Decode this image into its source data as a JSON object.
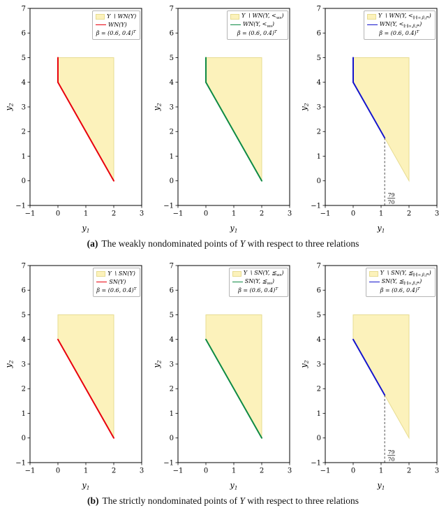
{
  "captions": {
    "a_tag": "(a)",
    "a_pre": "The weakly nondominated points of ",
    "a_math": "Y",
    "a_post": " with respect to three relations",
    "b_tag": "(b)",
    "b_pre": "The strictly nondominated points of ",
    "b_math": "Y",
    "b_post": " with respect to three relations"
  },
  "colors": {
    "region_fill": "#fcf2bb",
    "region_edge": "#e7dc92",
    "red": "#e8000d",
    "green": "#0e8a44",
    "blue": "#1414cc",
    "frame": "#000000",
    "threshold_line": "#3a3a3a"
  },
  "chart_data": {
    "type": "line",
    "description": "Six subplots: shaded feasible set Y with highlighted (weakly/strictly) nondominated boundary segments under three order relations",
    "axes": {
      "xlim": [
        -1,
        3
      ],
      "ylim": [
        -1,
        7
      ],
      "xticks": [
        -1,
        0,
        1,
        2,
        3
      ],
      "yticks": [
        -1,
        0,
        1,
        2,
        3,
        4,
        5,
        6,
        7
      ],
      "xlabel_main": "y",
      "xlabel_sub": "1",
      "ylabel_main": "y",
      "ylabel_sub": "2",
      "grid": false
    },
    "region_polygon": [
      [
        0,
        5
      ],
      [
        2,
        5
      ],
      [
        2,
        0
      ],
      [
        0,
        4
      ]
    ],
    "threshold": {
      "x": 1.1285714,
      "line_top_y": 1.7428571,
      "line_bottom_y": -1,
      "label_num": "79",
      "label_den": "70"
    },
    "beta_value": "(0.6, 0.4)",
    "subplots": [
      {
        "id": "a-natural-order",
        "line_color": "red",
        "highlight_segments": [
          [
            [
              0,
              5
            ],
            [
              0,
              4
            ]
          ],
          [
            [
              0,
              4
            ],
            [
              2,
              0
            ]
          ]
        ],
        "show_threshold": false,
        "legend": [
          {
            "marker": "patch",
            "segs": [
              {
                "t": "Y ∖ WN(Y)"
              }
            ]
          },
          {
            "marker": "line",
            "segs": [
              {
                "t": "WN(Y)"
              }
            ]
          },
          {
            "marker": "none",
            "segs": [
              {
                "t": "β = (0.6, 0.4)"
              },
              {
                "t": "T",
                "sup": 1
              }
            ]
          }
        ]
      },
      {
        "id": "a-weighted-sum-order",
        "line_color": "green",
        "highlight_segments": [
          [
            [
              0,
              5
            ],
            [
              0,
              4
            ]
          ],
          [
            [
              0,
              4
            ],
            [
              2,
              0
            ]
          ]
        ],
        "show_threshold": false,
        "legend": [
          {
            "marker": "patch",
            "segs": [
              {
                "t": "Y ∖ WN(Y, <"
              },
              {
                "t": "ws",
                "sub": 1
              },
              {
                "t": ")"
              }
            ]
          },
          {
            "marker": "line",
            "segs": [
              {
                "t": "WN(Y, <"
              },
              {
                "t": "ws",
                "sub": 1
              },
              {
                "t": ")"
              }
            ]
          },
          {
            "marker": "none",
            "segs": [
              {
                "t": "β = (0.6, 0.4)"
              },
              {
                "t": "T",
                "sup": 1
              }
            ]
          }
        ]
      },
      {
        "id": "a-norm-scalarization-order",
        "line_color": "blue",
        "highlight_segments": [
          [
            [
              0,
              5
            ],
            [
              0,
              4
            ]
          ],
          [
            [
              0,
              4
            ],
            [
              1.1285714,
              1.7428571
            ]
          ]
        ],
        "show_threshold": true,
        "legend": [
          {
            "marker": "patch",
            "segs": [
              {
                "t": "Y ∖ WN(Y, <"
              },
              {
                "t": "∥·∥∞,β,f*",
                "sub": 1
              },
              {
                "t": ")"
              }
            ]
          },
          {
            "marker": "line",
            "segs": [
              {
                "t": "WN(Y, <"
              },
              {
                "t": "∥·∥∞,β,f*",
                "sub": 1
              },
              {
                "t": ")"
              }
            ]
          },
          {
            "marker": "none",
            "segs": [
              {
                "t": "β = (0.6, 0.4)"
              },
              {
                "t": "T",
                "sup": 1
              }
            ]
          }
        ]
      },
      {
        "id": "b-natural-order",
        "line_color": "red",
        "highlight_segments": [
          [
            [
              0,
              4
            ],
            [
              2,
              0
            ]
          ]
        ],
        "show_threshold": false,
        "legend": [
          {
            "marker": "patch",
            "segs": [
              {
                "t": "Y ∖ SN(Y)"
              }
            ]
          },
          {
            "marker": "line",
            "segs": [
              {
                "t": "SN(Y)"
              }
            ]
          },
          {
            "marker": "none",
            "segs": [
              {
                "t": "β = (0.6, 0.4)"
              },
              {
                "t": "T",
                "sup": 1
              }
            ]
          }
        ]
      },
      {
        "id": "b-weighted-sum-order",
        "line_color": "green",
        "highlight_segments": [
          [
            [
              0,
              4
            ],
            [
              2,
              0
            ]
          ]
        ],
        "show_threshold": false,
        "legend": [
          {
            "marker": "patch",
            "segs": [
              {
                "t": "Y ∖ SN(Y, ≦"
              },
              {
                "t": "ws",
                "sub": 1
              },
              {
                "t": ")"
              }
            ]
          },
          {
            "marker": "line",
            "segs": [
              {
                "t": "SN(Y, ≦"
              },
              {
                "t": "ws",
                "sub": 1
              },
              {
                "t": ")"
              }
            ]
          },
          {
            "marker": "none",
            "segs": [
              {
                "t": "β = (0.6, 0.4)"
              },
              {
                "t": "T",
                "sup": 1
              }
            ]
          }
        ]
      },
      {
        "id": "b-norm-scalarization-order",
        "line_color": "blue",
        "highlight_segments": [
          [
            [
              0,
              4
            ],
            [
              1.1285714,
              1.7428571
            ]
          ]
        ],
        "show_threshold": true,
        "legend": [
          {
            "marker": "patch",
            "segs": [
              {
                "t": "Y ∖ SN(Y, ≦"
              },
              {
                "t": "∥·∥∞,β,f*",
                "sub": 1
              },
              {
                "t": ")"
              }
            ]
          },
          {
            "marker": "line",
            "segs": [
              {
                "t": "SN(Y, ≦"
              },
              {
                "t": "∥·∥∞,β,f*",
                "sub": 1
              },
              {
                "t": ")"
              }
            ]
          },
          {
            "marker": "none",
            "segs": [
              {
                "t": "β = (0.6, 0.4)"
              },
              {
                "t": "T",
                "sup": 1
              }
            ]
          }
        ]
      }
    ]
  }
}
